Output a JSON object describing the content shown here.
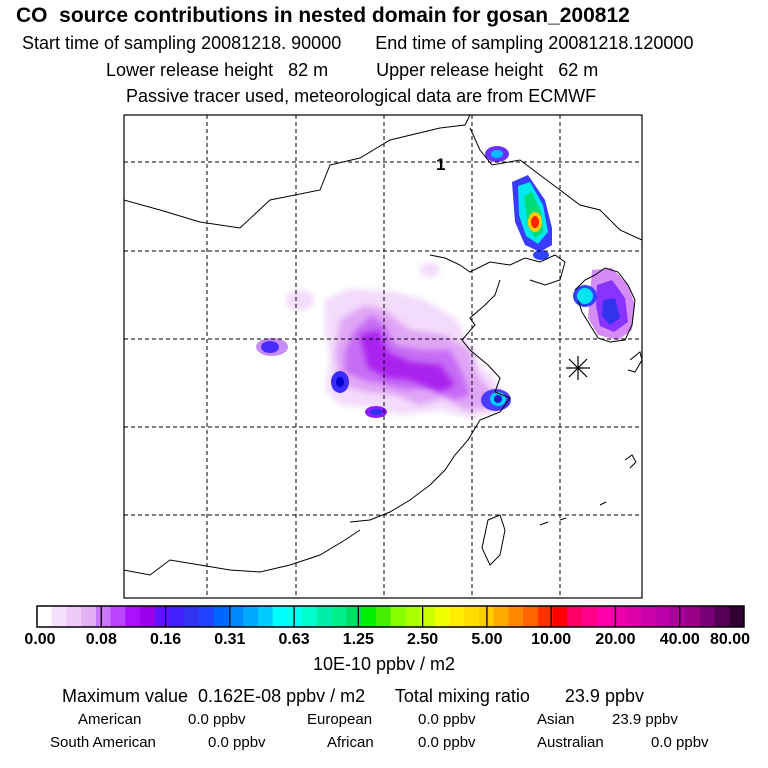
{
  "header": {
    "title": "CO  source contributions in nested domain for gosan_200812",
    "start_time": "Start time of sampling 20081218. 90000",
    "end_time": "End time of sampling 20081218.120000",
    "lower_release": "Lower release height   82 m",
    "upper_release": "Upper release height   62 m",
    "tracer_note": "Passive tracer used, meteorological data are from ECMWF"
  },
  "map": {
    "marker_label": "1",
    "release_site_icon": "asterisk-icon",
    "colors": {
      "land_outline": "#000000",
      "grid": "#000000"
    }
  },
  "colorbar": {
    "tick_labels": [
      "0.00",
      "0.08",
      "0.16",
      "0.31",
      "0.63",
      "1.25",
      "2.50",
      "5.00",
      "10.00",
      "20.00",
      "40.00",
      "80.00"
    ],
    "colors": [
      "#ffffff",
      "#f6e0fb",
      "#eecaf8",
      "#e4b0f4",
      "#cc77ff",
      "#bb44ff",
      "#aa11ff",
      "#9900ee",
      "#6611ff",
      "#4422ff",
      "#3333ee",
      "#2244ff",
      "#0066ff",
      "#0088ff",
      "#00aaff",
      "#00ccff",
      "#00ffff",
      "#00ffee",
      "#00ffcc",
      "#00eeaa",
      "#00ee88",
      "#00dd66",
      "#00ee00",
      "#44ee00",
      "#88ff00",
      "#aaff00",
      "#ccff00",
      "#eeff00",
      "#ffee00",
      "#ffdd00",
      "#ffcc00",
      "#ffaa00",
      "#ff8800",
      "#ff6600",
      "#ff3300",
      "#ff0000",
      "#ff0066",
      "#ff0088",
      "#ff00aa",
      "#ee00aa",
      "#dd00aa",
      "#cc00aa",
      "#bb00aa",
      "#aa0099",
      "#990088",
      "#770077",
      "#550055",
      "#330033"
    ],
    "units": "10E-10 ppbv / m2"
  },
  "summary": {
    "maximum": "Maximum value  0.162E-08 ppbv / m2",
    "total": "Total mixing ratio       23.9 ppbv",
    "regions": [
      {
        "name": "American",
        "value": "0.0 ppbv"
      },
      {
        "name": "European",
        "value": "0.0 ppbv"
      },
      {
        "name": "Asian",
        "value": "23.9 ppbv"
      },
      {
        "name": "South American",
        "value": "0.0 ppbv"
      },
      {
        "name": "African",
        "value": "0.0 ppbv"
      },
      {
        "name": "Australian",
        "value": "0.0 ppbv"
      }
    ]
  }
}
